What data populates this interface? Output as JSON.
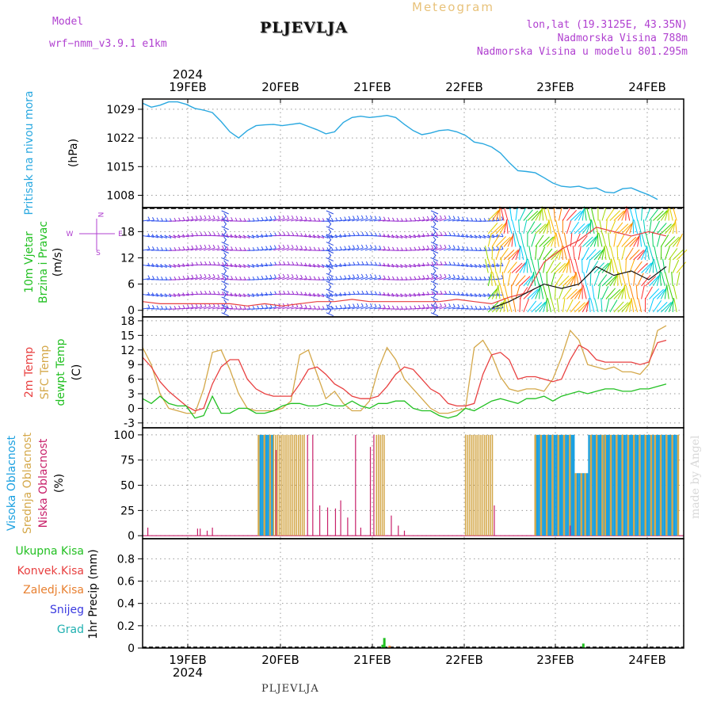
{
  "header": {
    "model_label": "Model",
    "model_name": "wrf−nmm_v3.9.1  e1km",
    "station": "PLJEVLJA",
    "product": "Meteogram",
    "lonlat": "lon,lat (19.3125E, 43.35N)",
    "elevation": "Nadmorska Visina 788m",
    "model_elevation": "Nadmorska Visina u modelu 801.295m"
  },
  "footer_station": "PLJEVLJA",
  "credit": "made by Angel",
  "colors": {
    "pressure": "#29a8e0",
    "temp2m": "#e84040",
    "sfc": "#d4a84a",
    "dewpt": "#22c022",
    "high_cloud": "#1aa0e0",
    "mid_cloud": "#d4a84a",
    "low_cloud": "#c8206a",
    "wind_label": "#22c022",
    "wind_icon": "#b040d0"
  },
  "axes": {
    "top_year": "2024",
    "bottom_year": "2024",
    "dates": [
      "19FEB",
      "20FEB",
      "21FEB",
      "22FEB",
      "23FEB",
      "24FEB"
    ]
  },
  "chart_data": [
    {
      "type": "line",
      "ylabel_lines": [
        "Pritisak na nivou mora",
        "(hPa)"
      ],
      "yticks": [
        1008,
        1015,
        1022,
        1029
      ],
      "ylim": [
        1005,
        1031.5
      ],
      "grid": true,
      "series": [
        {
          "x": [
            0,
            1,
            2,
            3,
            4,
            5,
            6,
            7,
            8,
            9,
            10,
            11,
            12,
            13,
            14,
            15,
            16,
            17,
            18,
            19,
            20,
            21,
            22,
            23,
            24,
            25,
            26,
            27,
            28,
            29,
            30,
            31,
            32,
            33,
            34,
            35,
            36,
            37,
            38,
            39,
            40,
            41,
            42,
            43,
            44,
            45,
            46,
            47,
            48,
            49,
            50,
            51,
            52,
            53,
            54,
            55,
            56,
            57,
            58,
            59
          ],
          "values": [
            1030.5,
            1029.5,
            1030.0,
            1030.8,
            1030.8,
            1030.2,
            1029.2,
            1028.8,
            1028.2,
            1026.0,
            1023.5,
            1022.0,
            1023.8,
            1025.0,
            1025.2,
            1025.3,
            1025.0,
            1025.3,
            1025.6,
            1024.8,
            1024.0,
            1023.0,
            1023.5,
            1025.8,
            1027.0,
            1027.3,
            1027.0,
            1027.2,
            1027.5,
            1027.0,
            1025.3,
            1023.8,
            1022.8,
            1023.2,
            1023.8,
            1024.0,
            1023.5,
            1022.6,
            1021.0,
            1020.6,
            1019.8,
            1018.3,
            1016.0,
            1014.0,
            1013.8,
            1013.5,
            1012.3,
            1011.0,
            1010.2,
            1010.0,
            1010.2,
            1009.6,
            1009.8,
            1008.8,
            1008.6,
            1009.6,
            1009.8,
            1008.9,
            1008.1,
            1007.0
          ]
        }
      ]
    },
    {
      "type": "barbs",
      "ylabel_lines": [
        "10m Vjetar",
        "Brzina i Pravac",
        "(m/s)"
      ],
      "yticks": [
        0,
        6,
        12,
        18
      ],
      "ylim": [
        -1.5,
        23.5
      ],
      "grid": true,
      "series": [
        {
          "name": "red",
          "x": [
            0,
            2,
            4,
            6,
            8,
            10,
            12,
            14,
            16,
            18,
            20,
            22,
            24,
            26,
            28,
            30,
            32,
            34,
            36,
            38,
            40,
            42,
            44,
            46,
            48,
            50,
            52,
            54,
            56,
            58,
            60
          ],
          "values": [
            2,
            1.5,
            1.5,
            1.5,
            1.5,
            1.5,
            1,
            1.5,
            1,
            1.5,
            2,
            2,
            2.5,
            2,
            2,
            2,
            2,
            2,
            2.5,
            2,
            1.5,
            3,
            4,
            11,
            14,
            16,
            19,
            18,
            17,
            18,
            17
          ]
        },
        {
          "name": "black",
          "x": [
            40,
            42,
            44,
            46,
            48,
            50,
            52,
            54,
            56,
            58,
            60
          ],
          "values": [
            0.5,
            2,
            4,
            6,
            5,
            6,
            10,
            8,
            9,
            7,
            10
          ]
        }
      ]
    },
    {
      "type": "line",
      "ylabel_lines": [
        "2m Temp",
        "SFC Temp",
        "dewpt Temp",
        "(C)"
      ],
      "yticks": [
        -3,
        0,
        3,
        6,
        9,
        12,
        15,
        18
      ],
      "ylim": [
        -4,
        18.8
      ],
      "grid": true,
      "series": [
        {
          "name": "2m Temp",
          "x": [
            0,
            1,
            2,
            3,
            4,
            5,
            6,
            7,
            8,
            9,
            10,
            11,
            12,
            13,
            14,
            15,
            16,
            17,
            18,
            19,
            20,
            21,
            22,
            23,
            24,
            25,
            26,
            27,
            28,
            29,
            30,
            31,
            32,
            33,
            34,
            35,
            36,
            37,
            38,
            39,
            40,
            41,
            42,
            43,
            44,
            45,
            46,
            47,
            48,
            49,
            50,
            51,
            52,
            53,
            54,
            55,
            56,
            57,
            58,
            59,
            60
          ],
          "values": [
            10.5,
            8.5,
            5.5,
            3.5,
            2,
            0.5,
            -0.5,
            0,
            5,
            8.5,
            10,
            10,
            6,
            4,
            3,
            2.5,
            2.5,
            2.5,
            5,
            8,
            8.5,
            7,
            5,
            4,
            2.5,
            2,
            2,
            2.5,
            4.5,
            7,
            8.5,
            8,
            6,
            4,
            3,
            1,
            0.5,
            0.5,
            1,
            7,
            11,
            11.5,
            10,
            6,
            6.5,
            6.5,
            6,
            5.5,
            6,
            10,
            13,
            12,
            10,
            9.5,
            9.5,
            9.5,
            9.5,
            9,
            9.5,
            13.5,
            14
          ]
        },
        {
          "name": "SFC Temp",
          "x": [
            0,
            1,
            2,
            3,
            4,
            5,
            6,
            7,
            8,
            9,
            10,
            11,
            12,
            13,
            14,
            15,
            16,
            17,
            18,
            19,
            20,
            21,
            22,
            23,
            24,
            25,
            26,
            27,
            28,
            29,
            30,
            31,
            32,
            33,
            34,
            35,
            36,
            37,
            38,
            39,
            40,
            41,
            42,
            43,
            44,
            45,
            46,
            47,
            48,
            49,
            50,
            51,
            52,
            53,
            54,
            55,
            56,
            57,
            58,
            59,
            60
          ],
          "values": [
            12.5,
            9,
            3,
            0,
            -0.5,
            -1,
            -1,
            4,
            11.5,
            12,
            8,
            3,
            0,
            -0.5,
            -0.5,
            -0.5,
            0,
            1.5,
            11,
            12,
            7,
            2,
            3.5,
            1,
            -0.5,
            -0.5,
            1.5,
            8,
            12.5,
            10,
            6,
            4,
            2,
            0,
            -1,
            -1,
            -0.5,
            0,
            12.5,
            14,
            11,
            6.5,
            4,
            3.5,
            4,
            4,
            3.5,
            6,
            10.5,
            16,
            14,
            9,
            8.5,
            8,
            8.5,
            7.5,
            7.5,
            7,
            9,
            16,
            17
          ]
        },
        {
          "name": "dewpt Temp",
          "x": [
            0,
            1,
            2,
            3,
            4,
            5,
            6,
            7,
            8,
            9,
            10,
            11,
            12,
            13,
            14,
            15,
            16,
            17,
            18,
            19,
            20,
            21,
            22,
            23,
            24,
            25,
            26,
            27,
            28,
            29,
            30,
            31,
            32,
            33,
            34,
            35,
            36,
            37,
            38,
            39,
            40,
            41,
            42,
            43,
            44,
            45,
            46,
            47,
            48,
            49,
            50,
            51,
            52,
            53,
            54,
            55,
            56,
            57,
            58,
            59,
            60
          ],
          "values": [
            2,
            1,
            2.5,
            1,
            0.5,
            0.5,
            -2,
            -1.5,
            2.5,
            -1,
            -1,
            0,
            0,
            -1,
            -1,
            -0.5,
            0.5,
            1,
            1,
            0.5,
            0.5,
            1,
            0.5,
            0.5,
            1.5,
            0.5,
            0,
            1,
            1,
            1.5,
            1.5,
            0,
            -0.5,
            -0.5,
            -1.5,
            -2,
            -1.5,
            0,
            -0.5,
            0.5,
            1.5,
            2,
            1.5,
            1,
            2,
            2,
            2.5,
            1.5,
            2.5,
            3,
            3.5,
            3,
            3.5,
            4,
            4,
            3.5,
            3.5,
            4,
            4,
            4.5,
            5
          ]
        }
      ]
    },
    {
      "type": "bar",
      "ylabel_lines": [
        "Visoka Oblacnost",
        "Srednja Oblacnost",
        "Niska Oblacnost",
        "(%)"
      ],
      "yticks": [
        0,
        25,
        50,
        75,
        100
      ],
      "ylim": [
        -3,
        107
      ],
      "grid": true,
      "series": [
        {
          "name": "Visoka Oblacnost",
          "x": [
            13.5,
            14.0,
            14.5,
            14.8,
            14.9,
            31.2,
            31.3,
            31.4,
            31.5,
            31.6,
            31.7,
            37.0,
            37.1,
            37.2,
            37.3,
            37.4,
            37.5,
            37.6,
            37.7,
            37.8,
            37.9,
            38.0,
            38.1,
            38.2,
            38.3,
            38.4,
            38.5,
            38.6,
            38.7,
            38.8,
            38.9,
            39.0,
            39.1,
            39.2,
            39.3,
            39.4,
            39.5,
            39.6,
            39.7,
            39.8,
            39.9,
            40.0,
            40.1,
            41.5,
            42.0,
            42.5,
            43.0,
            43.5,
            44.0,
            44.5,
            45.0,
            45.5,
            46.0,
            46.5,
            47.0,
            47.5,
            48.0,
            48.5,
            49.0,
            49.5,
            50.0,
            50.5,
            51.0,
            51.5,
            52.0,
            52.5,
            53.0,
            53.5,
            54.0,
            54.5,
            55.0,
            55.5,
            56.0,
            56.5,
            57.0,
            57.5,
            58.0,
            58.5,
            59.0,
            59.5
          ],
          "values": [
            100,
            100,
            100,
            100,
            100,
            100,
            100,
            100,
            100,
            100,
            100,
            100,
            100,
            100,
            100,
            100,
            100,
            100,
            100,
            100,
            100,
            100,
            100,
            100,
            100,
            100,
            100,
            100,
            100,
            100,
            100,
            100,
            100,
            100,
            100,
            100,
            100,
            100,
            100,
            100,
            100,
            100,
            100,
            100,
            100,
            100,
            100,
            100,
            100,
            100,
            100,
            100,
            100,
            100,
            100,
            100,
            100,
            100,
            100,
            100,
            100,
            100,
            100,
            100,
            100,
            100,
            100,
            100,
            100,
            100,
            100,
            100,
            100,
            100,
            100,
            100,
            100,
            100,
            100,
            100
          ]
        }
      ]
    },
    {
      "type": "bar",
      "ylabel_lines": [
        "Ukupna Kisa",
        "Konvek.Kisa",
        "Zaledj.Kisa",
        "Snijeg",
        "Grad",
        "1hr Precip (mm)"
      ],
      "yticks": [
        0,
        0.2,
        0.4,
        0.6,
        0.8
      ],
      "ylim": [
        0,
        0.98
      ],
      "grid": true,
      "series": [
        {
          "name": "Ukupna Kisa",
          "x": [
            27.5,
            27.7,
            50.5
          ],
          "values": [
            0.03,
            0.09,
            0.04
          ]
        },
        {
          "name": "Konvek.Kisa",
          "x": [
            28.3
          ],
          "values": [
            0.02
          ]
        }
      ]
    }
  ]
}
